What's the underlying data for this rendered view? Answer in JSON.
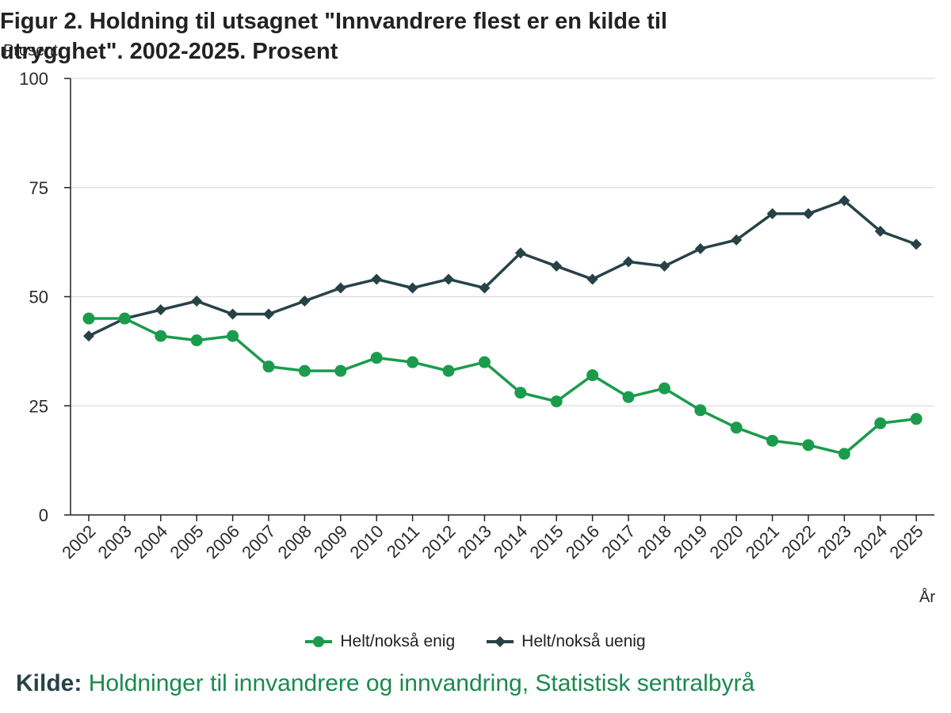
{
  "chart_data": {
    "type": "line",
    "title": "Figur 2. Holdning til utsagnet \"Innvandrere flest er en kilde til utrygghet\". 2002-2025. Prosent",
    "ylabel": "Prosent",
    "xlabel": "År",
    "ylim": [
      0,
      100
    ],
    "yticks": [
      0,
      25,
      50,
      75,
      100
    ],
    "grid": true,
    "legend_position": "bottom",
    "categories": [
      "2002",
      "2003",
      "2004",
      "2005",
      "2006",
      "2007",
      "2008",
      "2009",
      "2010",
      "2011",
      "2012",
      "2013",
      "2014",
      "2015",
      "2016",
      "2017",
      "2018",
      "2019",
      "2020",
      "2021",
      "2022",
      "2023",
      "2024",
      "2025"
    ],
    "series": [
      {
        "name": "Helt/nokså enig",
        "color": "#1a9c4c",
        "marker": "circle",
        "values": [
          45,
          45,
          41,
          40,
          41,
          34,
          33,
          33,
          36,
          35,
          33,
          35,
          28,
          26,
          32,
          27,
          29,
          24,
          20,
          17,
          16,
          14,
          21,
          22
        ]
      },
      {
        "name": "Helt/nokså uenig",
        "color": "#274247",
        "marker": "diamond",
        "values": [
          41,
          45,
          47,
          49,
          46,
          46,
          49,
          52,
          54,
          52,
          54,
          52,
          60,
          57,
          54,
          58,
          57,
          61,
          63,
          69,
          69,
          72,
          65,
          62
        ]
      }
    ]
  },
  "source": {
    "label": "Kilde:",
    "text": "Holdninger til innvandrere og innvandring, Statistisk sentralbyrå"
  }
}
